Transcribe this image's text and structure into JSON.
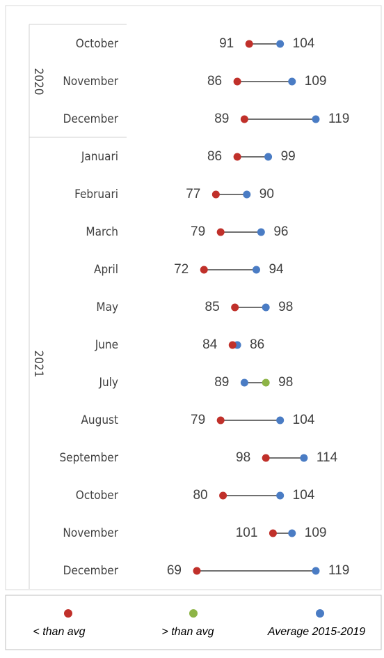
{
  "chart_data": {
    "type": "dumbbell",
    "groups": [
      {
        "label": "2020",
        "categories": [
          "October",
          "November",
          "December"
        ]
      },
      {
        "label": "2021",
        "categories": [
          "Januari",
          "Februari",
          "March",
          "April",
          "May",
          "June",
          "July",
          "August",
          "September",
          "October",
          "November",
          "December"
        ]
      }
    ],
    "series": [
      {
        "name": "< than avg",
        "color": "#c0302a",
        "values": [
          91,
          86,
          89,
          86,
          77,
          79,
          72,
          85,
          84,
          null,
          79,
          98,
          80,
          101,
          69
        ]
      },
      {
        "name": "> than avg",
        "color": "#8db446",
        "values": [
          null,
          null,
          null,
          null,
          null,
          null,
          null,
          null,
          null,
          98,
          null,
          null,
          null,
          null,
          null
        ]
      },
      {
        "name": "Average 2015-2019",
        "color": "#4a7cc4",
        "values": [
          104,
          109,
          119,
          99,
          90,
          96,
          94,
          98,
          86,
          89,
          104,
          114,
          104,
          109,
          119
        ]
      }
    ]
  }
}
